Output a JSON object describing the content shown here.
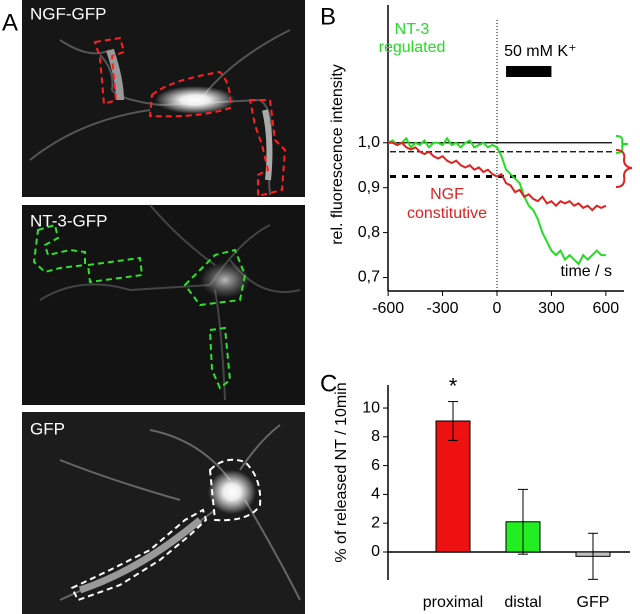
{
  "figure": {
    "panel_labels": [
      "A",
      "B",
      "C"
    ],
    "images": [
      "NGF-GFP",
      "NT-3-GFP",
      "GFP"
    ]
  },
  "chart_data": [
    {
      "type": "line",
      "y_label": "rel. fluorescence intensity",
      "x_label": "time / s",
      "annotations": {
        "green": [
          "NT-3",
          "regulated"
        ],
        "red": [
          "NGF",
          "constitutive"
        ],
        "stimulus": "50 mM K⁺"
      },
      "x": [
        -600,
        -575,
        -550,
        -525,
        -500,
        -475,
        -450,
        -425,
        -400,
        -375,
        -350,
        -325,
        -300,
        -275,
        -250,
        -225,
        -200,
        -175,
        -150,
        -125,
        -100,
        -75,
        -50,
        -25,
        0,
        25,
        50,
        75,
        100,
        125,
        150,
        175,
        200,
        225,
        250,
        275,
        300,
        325,
        350,
        375,
        400,
        425,
        450,
        475,
        500,
        525,
        550,
        575,
        600
      ],
      "series": [
        {
          "name": "NT-3",
          "color": "#22dd22",
          "values": [
            1.0,
            1.005,
            0.995,
            1.0,
            1.01,
            0.99,
            1.0,
            0.995,
            1.005,
            0.99,
            1.0,
            1.0,
            0.995,
            1.01,
            0.995,
            1.0,
            0.99,
            1.0,
            1.005,
            0.99,
            0.995,
            1.0,
            0.99,
            0.995,
            0.99,
            0.97,
            0.94,
            0.93,
            0.92,
            0.91,
            0.88,
            0.86,
            0.85,
            0.83,
            0.8,
            0.78,
            0.76,
            0.75,
            0.76,
            0.74,
            0.75,
            0.74,
            0.73,
            0.75,
            0.74,
            0.75,
            0.76,
            0.75,
            0.75
          ]
        },
        {
          "name": "NGF",
          "color": "#dd2222",
          "values": [
            1.0,
            1.0,
            0.995,
            1.0,
            0.99,
            0.985,
            0.99,
            0.98,
            0.975,
            0.98,
            0.97,
            0.965,
            0.97,
            0.96,
            0.955,
            0.96,
            0.95,
            0.945,
            0.95,
            0.94,
            0.945,
            0.935,
            0.94,
            0.93,
            0.925,
            0.93,
            0.91,
            0.905,
            0.89,
            0.895,
            0.88,
            0.885,
            0.875,
            0.87,
            0.88,
            0.865,
            0.87,
            0.86,
            0.87,
            0.865,
            0.87,
            0.86,
            0.865,
            0.855,
            0.86,
            0.85,
            0.86,
            0.855,
            0.86
          ]
        }
      ],
      "reference_lines": [
        {
          "value": 1.0,
          "dash": "solid"
        },
        {
          "value": 0.98,
          "dash": "dashed"
        },
        {
          "value": 0.925,
          "dash": "bold-dashed"
        }
      ],
      "vline": 0,
      "stimulus": [
        50,
        300
      ],
      "xlim": [
        -700,
        700
      ],
      "xticks": [
        -600,
        -300,
        0,
        300,
        600
      ],
      "ylim": [
        0.67,
        1.3
      ],
      "yticks": [
        {
          "value": 0.7,
          "label": "0,7"
        },
        {
          "value": 0.8,
          "label": "0,8"
        },
        {
          "value": 0.9,
          "label": "0,9"
        },
        {
          "value": 1.0,
          "label": "1,0"
        }
      ]
    },
    {
      "type": "bar",
      "y_label": "% of released NT / 10min",
      "categories": [
        "proximal",
        "distal",
        "GFP"
      ],
      "values": [
        9.1,
        2.1,
        -0.3
      ],
      "errors": [
        1.35,
        2.25,
        1.6
      ],
      "colors": [
        "#ee1111",
        "#22ee22",
        "#c0c0c0"
      ],
      "annotations": [
        {
          "category": 0,
          "text": "*"
        }
      ],
      "ylim": [
        -2.5,
        11.6
      ],
      "yticks": [
        0,
        2,
        4,
        6,
        8,
        10
      ]
    }
  ]
}
